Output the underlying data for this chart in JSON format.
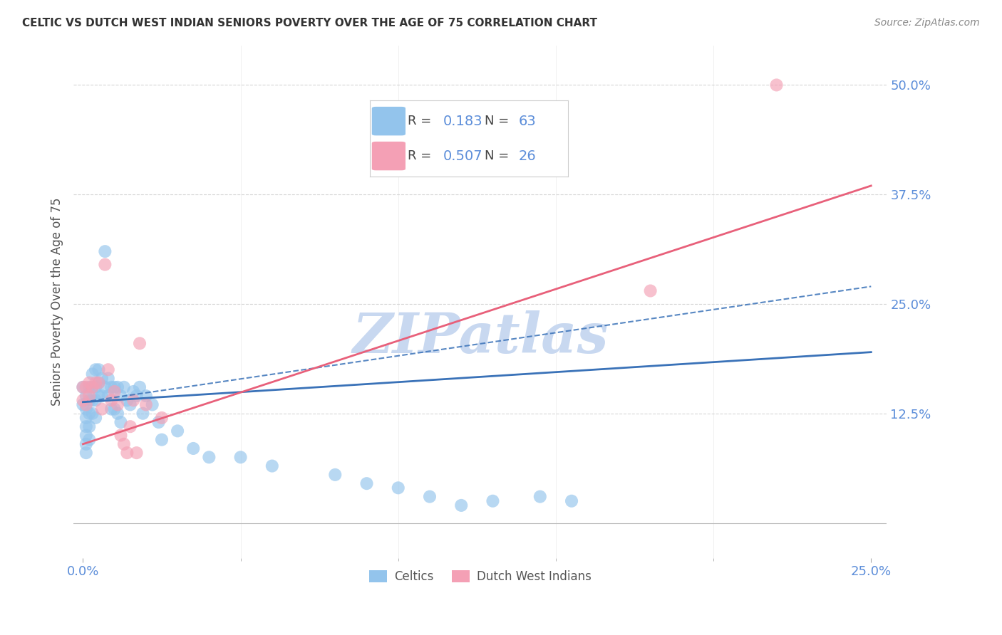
{
  "title": "CELTIC VS DUTCH WEST INDIAN SENIORS POVERTY OVER THE AGE OF 75 CORRELATION CHART",
  "source": "Source: ZipAtlas.com",
  "ylabel": "Seniors Poverty Over the Age of 75",
  "xlim": [
    -0.003,
    0.255
  ],
  "ylim": [
    -0.04,
    0.545
  ],
  "celtics_R": 0.183,
  "celtics_N": 63,
  "dutch_R": 0.507,
  "dutch_N": 26,
  "celtics_color": "#93C4EC",
  "dutch_color": "#F4A0B5",
  "celtics_line_color": "#3A72B8",
  "dutch_line_color": "#E8607A",
  "background_color": "#FFFFFF",
  "grid_color": "#CCCCCC",
  "title_color": "#333333",
  "axis_label_color": "#555555",
  "tick_label_color": "#5B8DD9",
  "watermark_color": "#C8D8F0",
  "celtics_x": [
    0.0,
    0.0,
    0.001,
    0.001,
    0.001,
    0.001,
    0.001,
    0.001,
    0.001,
    0.002,
    0.002,
    0.002,
    0.002,
    0.002,
    0.003,
    0.003,
    0.003,
    0.003,
    0.004,
    0.004,
    0.004,
    0.004,
    0.005,
    0.005,
    0.005,
    0.006,
    0.006,
    0.007,
    0.007,
    0.008,
    0.008,
    0.009,
    0.009,
    0.01,
    0.01,
    0.011,
    0.011,
    0.012,
    0.012,
    0.013,
    0.014,
    0.015,
    0.016,
    0.017,
    0.018,
    0.019,
    0.02,
    0.022,
    0.024,
    0.025,
    0.03,
    0.035,
    0.04,
    0.05,
    0.06,
    0.08,
    0.09,
    0.1,
    0.11,
    0.12,
    0.13,
    0.145,
    0.155
  ],
  "celtics_y": [
    0.155,
    0.135,
    0.145,
    0.13,
    0.12,
    0.11,
    0.1,
    0.09,
    0.08,
    0.155,
    0.14,
    0.125,
    0.11,
    0.095,
    0.17,
    0.155,
    0.14,
    0.125,
    0.175,
    0.155,
    0.14,
    0.12,
    0.175,
    0.16,
    0.145,
    0.165,
    0.145,
    0.31,
    0.155,
    0.165,
    0.145,
    0.155,
    0.13,
    0.155,
    0.13,
    0.155,
    0.125,
    0.145,
    0.115,
    0.155,
    0.14,
    0.135,
    0.15,
    0.145,
    0.155,
    0.125,
    0.145,
    0.135,
    0.115,
    0.095,
    0.105,
    0.085,
    0.075,
    0.075,
    0.065,
    0.055,
    0.045,
    0.04,
    0.03,
    0.02,
    0.025,
    0.03,
    0.025
  ],
  "dutch_x": [
    0.0,
    0.0,
    0.001,
    0.001,
    0.002,
    0.002,
    0.003,
    0.004,
    0.005,
    0.006,
    0.007,
    0.008,
    0.009,
    0.01,
    0.011,
    0.012,
    0.013,
    0.014,
    0.015,
    0.016,
    0.017,
    0.018,
    0.02,
    0.025,
    0.18,
    0.22
  ],
  "dutch_y": [
    0.155,
    0.14,
    0.155,
    0.135,
    0.16,
    0.145,
    0.155,
    0.16,
    0.16,
    0.13,
    0.295,
    0.175,
    0.14,
    0.15,
    0.135,
    0.1,
    0.09,
    0.08,
    0.11,
    0.14,
    0.08,
    0.205,
    0.135,
    0.12,
    0.265,
    0.5
  ],
  "celtics_reg": [
    0.138,
    0.195
  ],
  "dutch_reg": [
    0.09,
    0.385
  ],
  "celtics_dash": [
    0.138,
    0.27
  ],
  "ytick_vals": [
    0.125,
    0.25,
    0.375,
    0.5
  ],
  "ytick_labels": [
    "12.5%",
    "25.0%",
    "37.5%",
    "50.0%"
  ],
  "xtick_vals": [
    0.0,
    0.25
  ],
  "xtick_labels": [
    "0.0%",
    "25.0%"
  ],
  "minor_xticks": [
    0.05,
    0.1,
    0.15,
    0.2
  ]
}
